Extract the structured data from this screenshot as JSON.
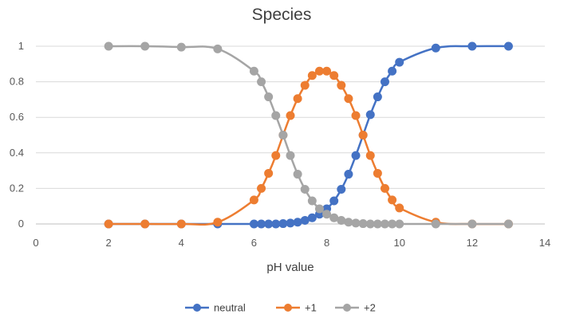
{
  "chart_data": {
    "type": "scatter",
    "title": "Species",
    "xlabel": "pH value",
    "ylabel": "",
    "xlim": [
      0,
      14
    ],
    "ylim": [
      0,
      1
    ],
    "xticks": [
      0,
      2,
      4,
      6,
      8,
      10,
      12,
      14
    ],
    "yticks": [
      0,
      0.2,
      0.4,
      0.6,
      0.8,
      1
    ],
    "ytick_labels": [
      "0",
      "0.2",
      "0.4",
      "0.6",
      "0.8",
      "1"
    ],
    "grid": true,
    "legend_position": "bottom",
    "series": [
      {
        "name": "neutral",
        "color": "#4472C4",
        "x": [
          2,
          3,
          4,
          5,
          6,
          6.2,
          6.4,
          6.6,
          6.8,
          7,
          7.2,
          7.4,
          7.6,
          7.8,
          8,
          8.2,
          8.4,
          8.6,
          8.8,
          9,
          9.2,
          9.4,
          9.6,
          9.8,
          10,
          11,
          12,
          13
        ],
        "y": [
          0,
          0,
          0,
          0,
          0,
          0,
          0,
          0,
          0.002,
          0.005,
          0.01,
          0.02,
          0.035,
          0.055,
          0.085,
          0.13,
          0.195,
          0.28,
          0.385,
          0.5,
          0.615,
          0.715,
          0.8,
          0.86,
          0.91,
          0.99,
          1.0,
          1.0
        ]
      },
      {
        "name": "+1",
        "color": "#ED7D31",
        "x": [
          2,
          3,
          4,
          5,
          6,
          6.2,
          6.4,
          6.6,
          6.8,
          7,
          7.2,
          7.4,
          7.6,
          7.8,
          8,
          8.2,
          8.4,
          8.6,
          8.8,
          9,
          9.2,
          9.4,
          9.6,
          9.8,
          10,
          11,
          12,
          13
        ],
        "y": [
          0,
          0,
          0,
          0.01,
          0.135,
          0.2,
          0.285,
          0.385,
          0.5,
          0.61,
          0.705,
          0.78,
          0.835,
          0.86,
          0.86,
          0.835,
          0.78,
          0.705,
          0.61,
          0.5,
          0.385,
          0.285,
          0.2,
          0.135,
          0.09,
          0.01,
          0,
          0
        ]
      },
      {
        "name": "+2",
        "color": "#A5A5A5",
        "x": [
          2,
          3,
          4,
          5,
          6,
          6.2,
          6.4,
          6.6,
          6.8,
          7,
          7.2,
          7.4,
          7.6,
          7.8,
          8,
          8.2,
          8.4,
          8.6,
          8.8,
          9,
          9.2,
          9.4,
          9.6,
          9.8,
          10,
          11,
          12,
          13
        ],
        "y": [
          1.0,
          1.0,
          0.995,
          0.985,
          0.86,
          0.8,
          0.715,
          0.61,
          0.5,
          0.385,
          0.28,
          0.195,
          0.13,
          0.085,
          0.055,
          0.035,
          0.02,
          0.01,
          0.005,
          0.002,
          0,
          0,
          0,
          0,
          0,
          0,
          0,
          0
        ]
      }
    ]
  },
  "colors": {
    "gridline": "#D9D9D9",
    "axis_line": "#BFBFBF",
    "text": "#595959"
  }
}
